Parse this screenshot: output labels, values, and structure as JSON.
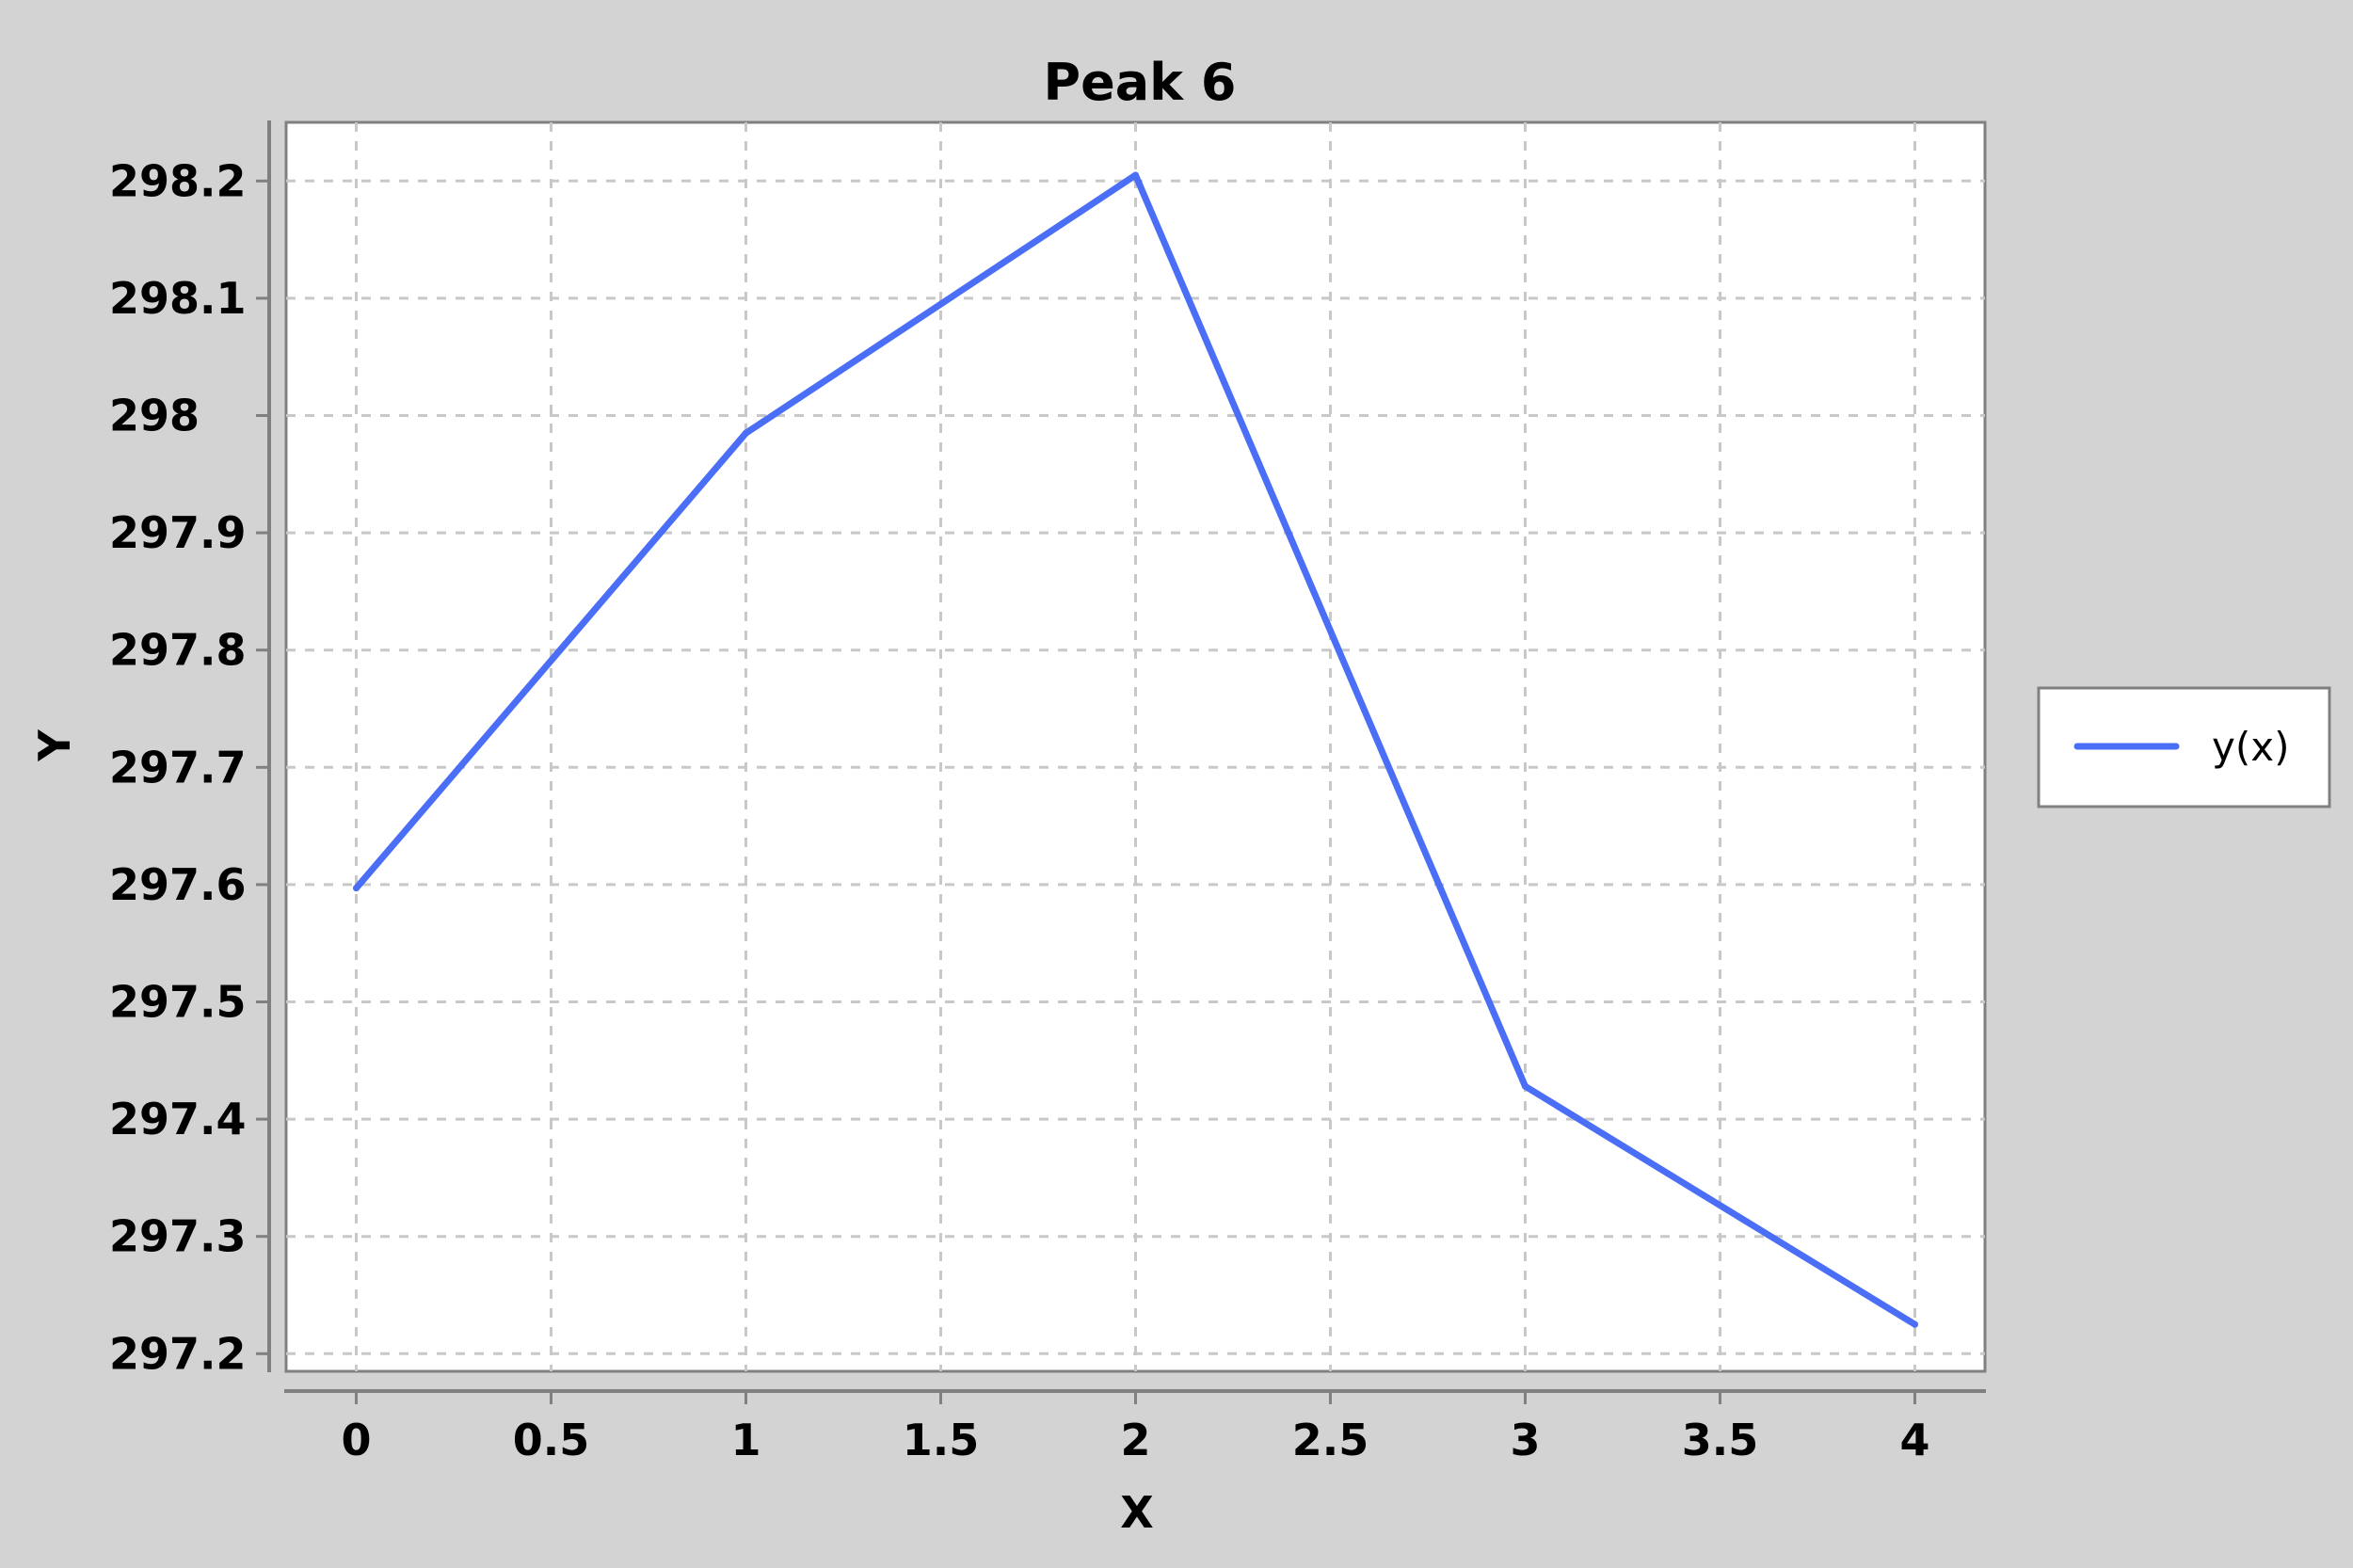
{
  "chart_data": {
    "type": "line",
    "title": "Peak 6",
    "xlabel": "X",
    "ylabel": "Y",
    "xlim": [
      -0.18,
      4.18
    ],
    "ylim": [
      297.185,
      298.25
    ],
    "x_ticks": [
      0,
      0.5,
      1,
      1.5,
      2,
      2.5,
      3,
      3.5,
      4
    ],
    "x_tick_labels": [
      "0",
      "0.5",
      "1",
      "1.5",
      "2",
      "2.5",
      "3",
      "3.5",
      "4"
    ],
    "y_ticks": [
      297.2,
      297.3,
      297.4,
      297.5,
      297.6,
      297.7,
      297.8,
      297.9,
      298.0,
      298.1,
      298.2
    ],
    "y_tick_labels": [
      "297.2",
      "297.3",
      "297.4",
      "297.5",
      "297.6",
      "297.7",
      "297.8",
      "297.9",
      "298",
      "298.1",
      "298.2"
    ],
    "grid": true,
    "legend_position": "right",
    "series": [
      {
        "name": "y(x)",
        "color": "#4a6ef5",
        "x": [
          0,
          1,
          2,
          3,
          4
        ],
        "y": [
          297.597,
          297.985,
          298.205,
          297.428,
          297.225
        ]
      }
    ]
  }
}
